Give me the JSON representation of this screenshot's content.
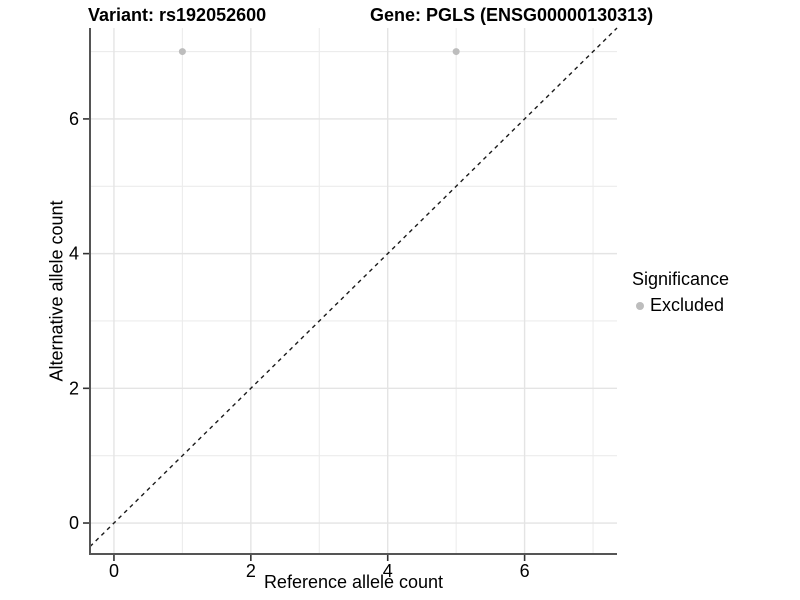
{
  "chart_data": {
    "type": "scatter",
    "titles": {
      "left": "Variant: rs192052600",
      "right": "Gene: PGLS (ENSG00000130313)"
    },
    "xlabel": "Reference allele count",
    "ylabel": "Alternative allele count",
    "xlim": [
      -0.35,
      7.35
    ],
    "ylim": [
      -0.46,
      7.35
    ],
    "x_ticks": [
      0,
      2,
      4,
      6
    ],
    "y_ticks": [
      0,
      2,
      4,
      6
    ],
    "x_minor_gridlines": [
      1,
      3,
      5,
      7
    ],
    "y_minor_gridlines": [
      1,
      3,
      5,
      7
    ],
    "grid": true,
    "series": [
      {
        "name": "Excluded",
        "color": "#bdbdbd",
        "points": [
          {
            "x": 1,
            "y": 7
          },
          {
            "x": 5,
            "y": 7
          }
        ]
      }
    ],
    "reference_line": {
      "type": "identity y=x",
      "style": "dashed",
      "color": "#1a1a1a"
    },
    "legend": {
      "title": "Significance",
      "position": "right",
      "entries": [
        {
          "label": "Excluded",
          "color": "#bdbdbd",
          "marker": "circle"
        }
      ]
    },
    "colors": {
      "background": "#ffffff",
      "axis_line": "#555555",
      "tick_mark": "#333333",
      "grid_major": "#e4e4e4",
      "grid_minor": "#ececec",
      "text": "#000000"
    }
  }
}
